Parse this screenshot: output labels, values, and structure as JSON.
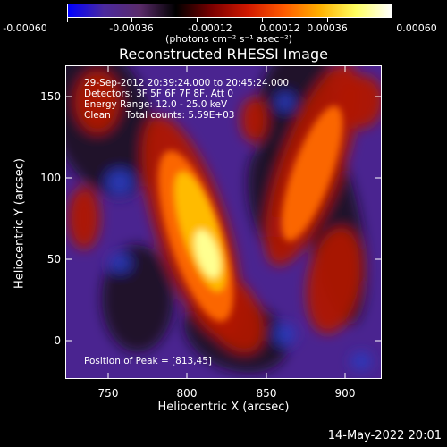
{
  "colorbar": {
    "ticks": [
      "-0.00060",
      "-0.00036",
      "-0.00012",
      "0.00012",
      "0.00036",
      "0.00060"
    ],
    "unit": "(photons cm⁻² s⁻¹ asec⁻²)",
    "colors": [
      "#0000ff",
      "#4b2a9e",
      "#5a2b6a",
      "#000000",
      "#7a0000",
      "#d01800",
      "#ff5a00",
      "#ffb000",
      "#ffff60",
      "#ffffff"
    ]
  },
  "plot": {
    "title": "Reconstructed RHESSI Image",
    "info_lines": [
      "29-Sep-2012 20:39:24.000 to 20:45:24.000",
      "Detectors: 3F 5F 6F 7F 8F, Att 0",
      "Energy Range: 12.0 - 25.0 keV",
      "Clean     Total counts: 5.59E+03"
    ],
    "peak_text": "Position of Peak = [813,45]",
    "xlabel": "Heliocentric X (arcsec)",
    "ylabel": "Heliocentric Y (arcsec)",
    "xticks": [
      "750",
      "800",
      "850",
      "900"
    ],
    "yticks": [
      "0",
      "50",
      "100",
      "150"
    ]
  },
  "footer": {
    "date": "14-May-2022 20:01"
  }
}
